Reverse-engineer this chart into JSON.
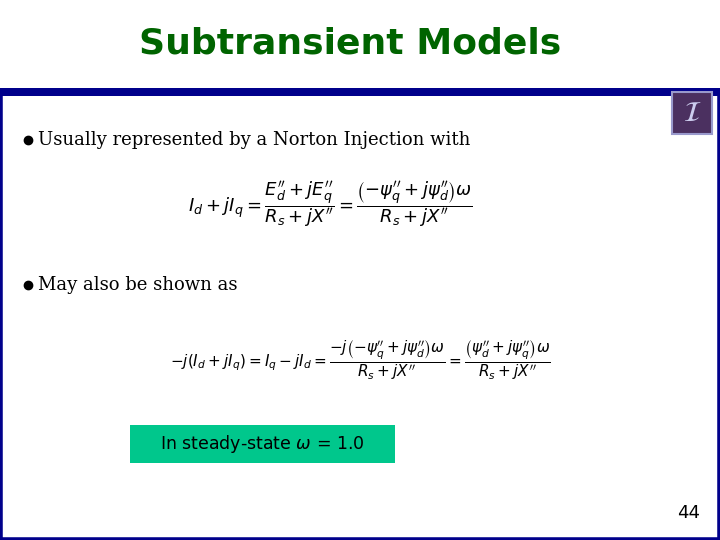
{
  "title": "Subtransient Models",
  "title_color": "#006400",
  "title_fontsize": 26,
  "bg_color": "#ffffff",
  "border_color": "#00008B",
  "bullet1": "Usually represented by a Norton Injection with",
  "bullet2": "May also be shown as",
  "box_text": "In steady-state $\\omega$ = 1.0",
  "box_color": "#00C78C",
  "box_text_color": "#000000",
  "page_number": "44",
  "bullet_color": "#000000",
  "text_color": "#000000",
  "header_line_color": "#00008B",
  "icon_border_color": "#4B3060",
  "icon_bg_color": "#4B3060"
}
